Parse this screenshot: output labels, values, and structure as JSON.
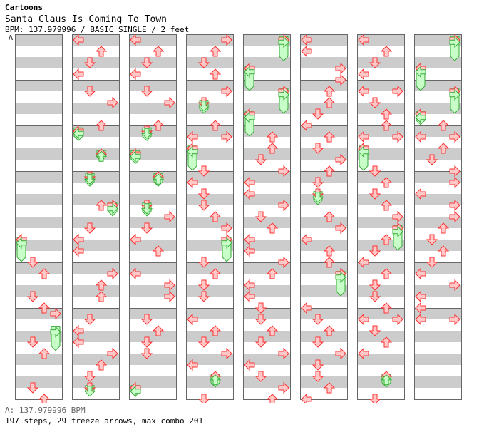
{
  "header": {
    "group": "Cartoons",
    "title": "Santa Claus Is Coming To Town",
    "info": "BPM: 137.979996 / BASIC SINGLE / 2 feet"
  },
  "bpm_marker": "A",
  "footer": {
    "bpm": "A: 137.979996 BPM",
    "stats": "197 steps, 29 freeze arrows, max combo 201"
  },
  "colors": {
    "arrow_fill": "#ffc8c8",
    "arrow_stroke": "#ff3333",
    "freeze_fill": "#c8ffc8",
    "freeze_stroke": "#33aa33",
    "stripe": "#cccccc",
    "column_border": "#666666"
  },
  "chart_data": {
    "type": "step-chart",
    "lanes": [
      "left",
      "down",
      "up",
      "right"
    ],
    "columns": 8,
    "measures_per_column": 8,
    "notes": [
      {
        "c": 0,
        "p": 4.375,
        "l": 0
      },
      {
        "c": 0,
        "p": 4.45,
        "l": 0,
        "f": 0.5
      },
      {
        "c": 0,
        "p": 4.875,
        "l": 1
      },
      {
        "c": 0,
        "p": 5.125,
        "l": 2
      },
      {
        "c": 0,
        "p": 5.625,
        "l": 1
      },
      {
        "c": 0,
        "p": 5.875,
        "l": 2
      },
      {
        "c": 0,
        "p": 6.0,
        "l": 3
      },
      {
        "c": 0,
        "p": 6.4,
        "l": 3,
        "f": 0.5
      },
      {
        "c": 0,
        "p": 6.625,
        "l": 1
      },
      {
        "c": 0,
        "p": 6.875,
        "l": 2
      },
      {
        "c": 0,
        "p": 7.625,
        "l": 1
      },
      {
        "c": 0,
        "p": 7.875,
        "l": 2
      },
      {
        "c": 1,
        "p": 0.0,
        "l": 0
      },
      {
        "c": 1,
        "p": 0.25,
        "l": 2
      },
      {
        "c": 1,
        "p": 0.5,
        "l": 1
      },
      {
        "c": 1,
        "p": 0.75,
        "l": 0
      },
      {
        "c": 1,
        "p": 1.125,
        "l": 1
      },
      {
        "c": 1,
        "p": 1.375,
        "l": 3
      },
      {
        "c": 1,
        "p": 1.875,
        "l": 2
      },
      {
        "c": 1,
        "p": 2.0,
        "l": 0
      },
      {
        "c": 1,
        "p": 2.05,
        "l": 0,
        "f": 0.25
      },
      {
        "c": 1,
        "p": 2.5,
        "l": 2
      },
      {
        "c": 1,
        "p": 2.55,
        "l": 2,
        "f": 0.2
      },
      {
        "c": 1,
        "p": 3.0,
        "l": 1
      },
      {
        "c": 1,
        "p": 3.05,
        "l": 1,
        "f": 0.25
      },
      {
        "c": 1,
        "p": 3.625,
        "l": 2
      },
      {
        "c": 1,
        "p": 3.625,
        "l": 3
      },
      {
        "c": 1,
        "p": 3.7,
        "l": 3,
        "f": 0.25
      },
      {
        "c": 1,
        "p": 4.125,
        "l": 1
      },
      {
        "c": 1,
        "p": 4.375,
        "l": 0
      },
      {
        "c": 1,
        "p": 4.625,
        "l": 0
      },
      {
        "c": 1,
        "p": 5.125,
        "l": 3
      },
      {
        "c": 1,
        "p": 5.375,
        "l": 2
      },
      {
        "c": 1,
        "p": 5.625,
        "l": 2
      },
      {
        "c": 1,
        "p": 6.125,
        "l": 1
      },
      {
        "c": 1,
        "p": 6.375,
        "l": 0
      },
      {
        "c": 1,
        "p": 6.625,
        "l": 0
      },
      {
        "c": 1,
        "p": 6.875,
        "l": 3
      },
      {
        "c": 1,
        "p": 7.125,
        "l": 2
      },
      {
        "c": 1,
        "p": 7.375,
        "l": 1
      },
      {
        "c": 1,
        "p": 7.625,
        "l": 1
      },
      {
        "c": 1,
        "p": 7.7,
        "l": 1,
        "f": 0.2
      },
      {
        "c": 2,
        "p": 0.0,
        "l": 0
      },
      {
        "c": 2,
        "p": 0.25,
        "l": 2
      },
      {
        "c": 2,
        "p": 0.5,
        "l": 1
      },
      {
        "c": 2,
        "p": 0.75,
        "l": 0
      },
      {
        "c": 2,
        "p": 1.125,
        "l": 1
      },
      {
        "c": 2,
        "p": 1.375,
        "l": 3
      },
      {
        "c": 2,
        "p": 1.875,
        "l": 2
      },
      {
        "c": 2,
        "p": 2.0,
        "l": 1
      },
      {
        "c": 2,
        "p": 2.05,
        "l": 1,
        "f": 0.25
      },
      {
        "c": 2,
        "p": 2.5,
        "l": 0
      },
      {
        "c": 2,
        "p": 2.55,
        "l": 0,
        "f": 0.25
      },
      {
        "c": 2,
        "p": 3.0,
        "l": 2
      },
      {
        "c": 2,
        "p": 3.05,
        "l": 2,
        "f": 0.25
      },
      {
        "c": 2,
        "p": 3.625,
        "l": 1
      },
      {
        "c": 2,
        "p": 3.7,
        "l": 1,
        "f": 0.25
      },
      {
        "c": 2,
        "p": 3.875,
        "l": 3
      },
      {
        "c": 2,
        "p": 4.125,
        "l": 1
      },
      {
        "c": 2,
        "p": 4.375,
        "l": 0
      },
      {
        "c": 2,
        "p": 4.625,
        "l": 2
      },
      {
        "c": 2,
        "p": 5.125,
        "l": 0
      },
      {
        "c": 2,
        "p": 5.375,
        "l": 3
      },
      {
        "c": 2,
        "p": 5.625,
        "l": 3
      },
      {
        "c": 2,
        "p": 6.125,
        "l": 1
      },
      {
        "c": 2,
        "p": 6.375,
        "l": 2
      },
      {
        "c": 2,
        "p": 6.625,
        "l": 1
      },
      {
        "c": 2,
        "p": 6.875,
        "l": 1
      },
      {
        "c": 2,
        "p": 7.625,
        "l": 0
      },
      {
        "c": 2,
        "p": 7.7,
        "l": 0,
        "f": 0.2
      },
      {
        "c": 3,
        "p": 0.0,
        "l": 3
      },
      {
        "c": 3,
        "p": 0.25,
        "l": 2
      },
      {
        "c": 3,
        "p": 0.5,
        "l": 1
      },
      {
        "c": 3,
        "p": 0.75,
        "l": 2
      },
      {
        "c": 3,
        "p": 1.125,
        "l": 3
      },
      {
        "c": 3,
        "p": 1.375,
        "l": 1
      },
      {
        "c": 3,
        "p": 1.45,
        "l": 1,
        "f": 0.25
      },
      {
        "c": 3,
        "p": 1.875,
        "l": 2
      },
      {
        "c": 3,
        "p": 2.125,
        "l": 0
      },
      {
        "c": 3,
        "p": 2.125,
        "l": 3
      },
      {
        "c": 3,
        "p": 2.375,
        "l": 0
      },
      {
        "c": 3,
        "p": 2.45,
        "l": 0,
        "f": 0.5
      },
      {
        "c": 3,
        "p": 2.875,
        "l": 1
      },
      {
        "c": 3,
        "p": 3.125,
        "l": 0
      },
      {
        "c": 3,
        "p": 3.375,
        "l": 1
      },
      {
        "c": 3,
        "p": 3.625,
        "l": 1
      },
      {
        "c": 3,
        "p": 3.875,
        "l": 2
      },
      {
        "c": 3,
        "p": 4.125,
        "l": 3
      },
      {
        "c": 3,
        "p": 4.375,
        "l": 3
      },
      {
        "c": 3,
        "p": 4.45,
        "l": 3,
        "f": 0.5
      },
      {
        "c": 3,
        "p": 4.875,
        "l": 1
      },
      {
        "c": 3,
        "p": 5.125,
        "l": 2
      },
      {
        "c": 3,
        "p": 5.375,
        "l": 1
      },
      {
        "c": 3,
        "p": 5.625,
        "l": 1
      },
      {
        "c": 3,
        "p": 6.125,
        "l": 0
      },
      {
        "c": 3,
        "p": 6.375,
        "l": 2
      },
      {
        "c": 3,
        "p": 6.625,
        "l": 1
      },
      {
        "c": 3,
        "p": 6.875,
        "l": 3
      },
      {
        "c": 3,
        "p": 7.125,
        "l": 0
      },
      {
        "c": 3,
        "p": 7.375,
        "l": 2
      },
      {
        "c": 3,
        "p": 7.45,
        "l": 2,
        "f": 0.25
      },
      {
        "c": 3,
        "p": 7.875,
        "l": 1
      },
      {
        "c": 4,
        "p": 0.0,
        "l": 3
      },
      {
        "c": 4,
        "p": 0.05,
        "l": 3,
        "f": 0.5
      },
      {
        "c": 4,
        "p": 0.625,
        "l": 0
      },
      {
        "c": 4,
        "p": 0.7,
        "l": 0,
        "f": 0.5
      },
      {
        "c": 4,
        "p": 1.125,
        "l": 3
      },
      {
        "c": 4,
        "p": 1.2,
        "l": 3,
        "f": 0.5
      },
      {
        "c": 4,
        "p": 1.625,
        "l": 0
      },
      {
        "c": 4,
        "p": 1.7,
        "l": 0,
        "f": 0.5
      },
      {
        "c": 4,
        "p": 2.125,
        "l": 2
      },
      {
        "c": 4,
        "p": 2.375,
        "l": 2
      },
      {
        "c": 4,
        "p": 2.625,
        "l": 1
      },
      {
        "c": 4,
        "p": 2.875,
        "l": 3
      },
      {
        "c": 4,
        "p": 3.125,
        "l": 0
      },
      {
        "c": 4,
        "p": 3.375,
        "l": 0
      },
      {
        "c": 4,
        "p": 3.625,
        "l": 3
      },
      {
        "c": 4,
        "p": 3.875,
        "l": 1
      },
      {
        "c": 4,
        "p": 4.125,
        "l": 2
      },
      {
        "c": 4,
        "p": 4.375,
        "l": 0
      },
      {
        "c": 4,
        "p": 4.625,
        "l": 0
      },
      {
        "c": 4,
        "p": 4.875,
        "l": 3
      },
      {
        "c": 4,
        "p": 5.125,
        "l": 2
      },
      {
        "c": 4,
        "p": 5.375,
        "l": 0
      },
      {
        "c": 4,
        "p": 5.625,
        "l": 0
      },
      {
        "c": 4,
        "p": 5.875,
        "l": 1
      },
      {
        "c": 4,
        "p": 6.125,
        "l": 1
      },
      {
        "c": 4,
        "p": 6.375,
        "l": 2
      },
      {
        "c": 4,
        "p": 6.625,
        "l": 1
      },
      {
        "c": 4,
        "p": 6.875,
        "l": 3
      },
      {
        "c": 4,
        "p": 7.125,
        "l": 0
      },
      {
        "c": 4,
        "p": 7.375,
        "l": 1
      },
      {
        "c": 4,
        "p": 7.625,
        "l": 3
      },
      {
        "c": 4,
        "p": 7.875,
        "l": 2
      },
      {
        "c": 5,
        "p": 0.0,
        "l": 0
      },
      {
        "c": 5,
        "p": 0.25,
        "l": 0
      },
      {
        "c": 5,
        "p": 0.625,
        "l": 3
      },
      {
        "c": 5,
        "p": 0.875,
        "l": 3
      },
      {
        "c": 5,
        "p": 1.125,
        "l": 2
      },
      {
        "c": 5,
        "p": 1.375,
        "l": 2
      },
      {
        "c": 5,
        "p": 1.625,
        "l": 1
      },
      {
        "c": 5,
        "p": 1.875,
        "l": 0
      },
      {
        "c": 5,
        "p": 2.125,
        "l": 2
      },
      {
        "c": 5,
        "p": 2.375,
        "l": 1
      },
      {
        "c": 5,
        "p": 2.625,
        "l": 3
      },
      {
        "c": 5,
        "p": 2.875,
        "l": 2
      },
      {
        "c": 5,
        "p": 3.125,
        "l": 1
      },
      {
        "c": 5,
        "p": 3.375,
        "l": 1
      },
      {
        "c": 5,
        "p": 3.45,
        "l": 1,
        "f": 0.25
      },
      {
        "c": 5,
        "p": 3.875,
        "l": 2
      },
      {
        "c": 5,
        "p": 4.125,
        "l": 3
      },
      {
        "c": 5,
        "p": 4.375,
        "l": 0
      },
      {
        "c": 5,
        "p": 4.625,
        "l": 2
      },
      {
        "c": 5,
        "p": 4.875,
        "l": 2
      },
      {
        "c": 5,
        "p": 5.125,
        "l": 3
      },
      {
        "c": 5,
        "p": 5.2,
        "l": 3,
        "f": 0.5
      },
      {
        "c": 5,
        "p": 5.875,
        "l": 0
      },
      {
        "c": 5,
        "p": 6.125,
        "l": 1
      },
      {
        "c": 5,
        "p": 6.375,
        "l": 2
      },
      {
        "c": 5,
        "p": 6.625,
        "l": 1
      },
      {
        "c": 5,
        "p": 6.875,
        "l": 3
      },
      {
        "c": 5,
        "p": 7.125,
        "l": 1
      },
      {
        "c": 5,
        "p": 7.375,
        "l": 1
      },
      {
        "c": 5,
        "p": 7.625,
        "l": 2
      },
      {
        "c": 5,
        "p": 7.875,
        "l": 0
      },
      {
        "c": 6,
        "p": 0.0,
        "l": 0
      },
      {
        "c": 6,
        "p": 0.25,
        "l": 2
      },
      {
        "c": 6,
        "p": 0.5,
        "l": 1
      },
      {
        "c": 6,
        "p": 0.75,
        "l": 0
      },
      {
        "c": 6,
        "p": 1.125,
        "l": 0
      },
      {
        "c": 6,
        "p": 1.125,
        "l": 3
      },
      {
        "c": 6,
        "p": 1.375,
        "l": 1
      },
      {
        "c": 6,
        "p": 1.625,
        "l": 2
      },
      {
        "c": 6,
        "p": 1.875,
        "l": 2
      },
      {
        "c": 6,
        "p": 2.125,
        "l": 0
      },
      {
        "c": 6,
        "p": 2.125,
        "l": 3
      },
      {
        "c": 6,
        "p": 2.375,
        "l": 0
      },
      {
        "c": 6,
        "p": 2.45,
        "l": 0,
        "f": 0.5
      },
      {
        "c": 6,
        "p": 2.875,
        "l": 1
      },
      {
        "c": 6,
        "p": 3.125,
        "l": 2
      },
      {
        "c": 6,
        "p": 3.375,
        "l": 1
      },
      {
        "c": 6,
        "p": 3.625,
        "l": 2
      },
      {
        "c": 6,
        "p": 3.875,
        "l": 3
      },
      {
        "c": 6,
        "p": 4.125,
        "l": 3
      },
      {
        "c": 6,
        "p": 4.2,
        "l": 3,
        "f": 0.5
      },
      {
        "c": 6,
        "p": 4.375,
        "l": 2
      },
      {
        "c": 6,
        "p": 4.625,
        "l": 1
      },
      {
        "c": 6,
        "p": 4.875,
        "l": 0
      },
      {
        "c": 6,
        "p": 5.125,
        "l": 2
      },
      {
        "c": 6,
        "p": 5.375,
        "l": 1
      },
      {
        "c": 6,
        "p": 5.625,
        "l": 1
      },
      {
        "c": 6,
        "p": 5.875,
        "l": 2
      },
      {
        "c": 6,
        "p": 6.125,
        "l": 0
      },
      {
        "c": 6,
        "p": 6.125,
        "l": 3
      },
      {
        "c": 6,
        "p": 6.375,
        "l": 1
      },
      {
        "c": 6,
        "p": 6.625,
        "l": 2
      },
      {
        "c": 6,
        "p": 6.875,
        "l": 0
      },
      {
        "c": 6,
        "p": 7.375,
        "l": 2
      },
      {
        "c": 6,
        "p": 7.45,
        "l": 2,
        "f": 0.25
      },
      {
        "c": 6,
        "p": 7.875,
        "l": 1
      },
      {
        "c": 7,
        "p": 0.0,
        "l": 3
      },
      {
        "c": 7,
        "p": 0.05,
        "l": 3,
        "f": 0.5
      },
      {
        "c": 7,
        "p": 0.625,
        "l": 0
      },
      {
        "c": 7,
        "p": 0.7,
        "l": 0,
        "f": 0.5
      },
      {
        "c": 7,
        "p": 1.125,
        "l": 3
      },
      {
        "c": 7,
        "p": 1.2,
        "l": 3,
        "f": 0.5
      },
      {
        "c": 7,
        "p": 1.625,
        "l": 0
      },
      {
        "c": 7,
        "p": 1.7,
        "l": 0,
        "f": 0.25
      },
      {
        "c": 7,
        "p": 1.875,
        "l": 2
      },
      {
        "c": 7,
        "p": 2.125,
        "l": 0
      },
      {
        "c": 7,
        "p": 2.125,
        "l": 3
      },
      {
        "c": 7,
        "p": 2.375,
        "l": 2
      },
      {
        "c": 7,
        "p": 2.625,
        "l": 1
      },
      {
        "c": 7,
        "p": 2.875,
        "l": 3
      },
      {
        "c": 7,
        "p": 3.125,
        "l": 3
      },
      {
        "c": 7,
        "p": 3.375,
        "l": 0
      },
      {
        "c": 7,
        "p": 3.625,
        "l": 3
      },
      {
        "c": 7,
        "p": 3.875,
        "l": 3
      },
      {
        "c": 7,
        "p": 4.125,
        "l": 2
      },
      {
        "c": 7,
        "p": 4.375,
        "l": 1
      },
      {
        "c": 7,
        "p": 4.625,
        "l": 2
      },
      {
        "c": 7,
        "p": 4.875,
        "l": 1
      },
      {
        "c": 7,
        "p": 5.125,
        "l": 0
      },
      {
        "c": 7,
        "p": 5.375,
        "l": 3
      },
      {
        "c": 7,
        "p": 5.625,
        "l": 0
      },
      {
        "c": 7,
        "p": 5.875,
        "l": 0
      },
      {
        "c": 7,
        "p": 6.125,
        "l": 0
      },
      {
        "c": 7,
        "p": 6.125,
        "l": 3
      }
    ]
  }
}
